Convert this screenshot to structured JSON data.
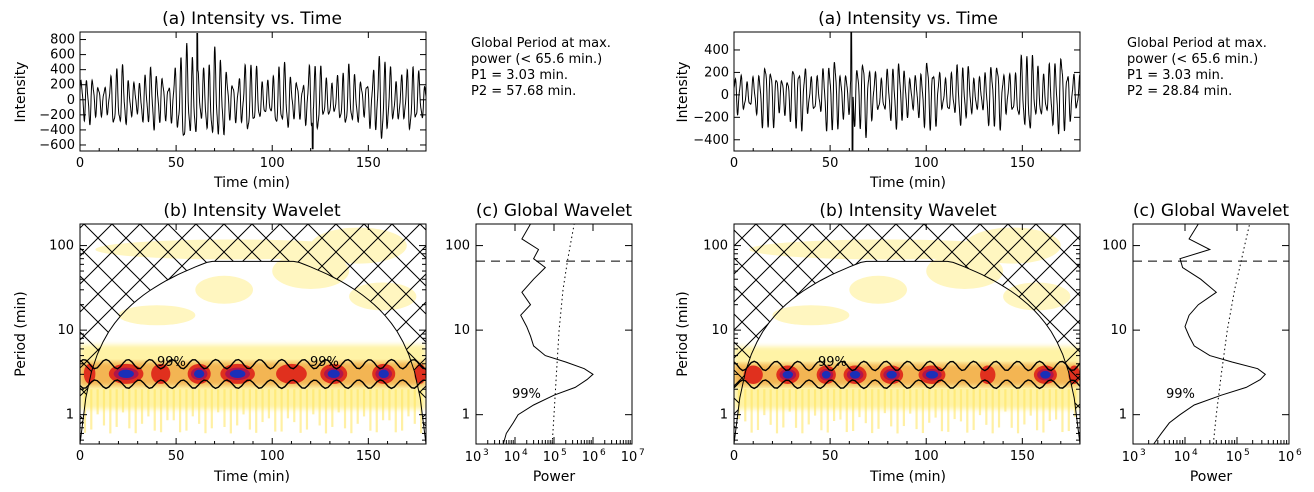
{
  "chart_data": [
    {
      "type": "line",
      "title": "(a) Intensity vs. Time",
      "xlabel": "Time (min)",
      "ylabel": "Intensity",
      "xlim": [
        0,
        180
      ],
      "ylim": [
        -680,
        900
      ],
      "xticks": [
        "0",
        "50",
        "100",
        "150"
      ],
      "yticks": [
        "800",
        "600",
        "400",
        "200",
        "0",
        "−200",
        "−400",
        "−600"
      ],
      "yticks_values": [
        800,
        600,
        400,
        200,
        0,
        -200,
        -400,
        -600
      ],
      "series": [
        {
          "type": "oscillation",
          "x": [
            0,
            180
          ],
          "dominant_period_min": 3.03,
          "amplitude_envelope": [
            {
              "t": 0,
              "amp": 300
            },
            {
              "t": 20,
              "amp": 450
            },
            {
              "t": 40,
              "amp": 420
            },
            {
              "t": 60,
              "amp": 780
            },
            {
              "t": 80,
              "amp": 520
            },
            {
              "t": 100,
              "amp": 450
            },
            {
              "t": 120,
              "amp": 500
            },
            {
              "t": 140,
              "amp": 420
            },
            {
              "t": 160,
              "amp": 620
            },
            {
              "t": 180,
              "amp": 350
            }
          ],
          "spikes": [
            {
              "t": 61,
              "y": 880
            },
            {
              "t": 121,
              "y": -650
            }
          ]
        }
      ],
      "annotation": [
        "Global Period at max.",
        "power (< 65.6 min.)",
        "P1 = 3.03 min.",
        "P2 = 57.68 min."
      ]
    },
    {
      "type": "heatmap",
      "title": "(b) Intensity Wavelet",
      "xlabel": "Time (min)",
      "ylabel": "Period (min)",
      "xlim": [
        0,
        180
      ],
      "ylim_log": [
        0.45,
        180
      ],
      "xticks": [
        "0",
        "50",
        "100",
        "150"
      ],
      "yticks": [
        "1",
        "10",
        "100"
      ],
      "yticks_values": [
        1,
        10,
        100
      ],
      "power_band_period_min": [
        2.2,
        4.2
      ],
      "blobs": [
        {
          "t": 5,
          "w": 3,
          "level": 2
        },
        {
          "t": 24,
          "w": 9,
          "level": 3
        },
        {
          "t": 42,
          "w": 5,
          "level": 2
        },
        {
          "t": 62,
          "w": 6,
          "level": 3
        },
        {
          "t": 82,
          "w": 9,
          "level": 3
        },
        {
          "t": 110,
          "w": 8,
          "level": 2
        },
        {
          "t": 132,
          "w": 7,
          "level": 3
        },
        {
          "t": 158,
          "w": 6,
          "level": 3
        },
        {
          "t": 177,
          "w": 3,
          "level": 2
        }
      ],
      "contour_labels": [
        {
          "text": "99%",
          "t": 43,
          "p": 4.5
        },
        {
          "text": "99%",
          "t": 128,
          "p": 4.5
        }
      ],
      "coi_peak_period": 65
    },
    {
      "type": "line",
      "title": "(c) Global Wavelet",
      "xlabel": "Power",
      "xscale": "log",
      "xlim_log": [
        1000,
        10000000
      ],
      "xticks": [
        "10",
        "10",
        "10",
        "10",
        "10"
      ],
      "xticks_exp": [
        "3",
        "4",
        "5",
        "6",
        "7"
      ],
      "ylim_log": [
        0.45,
        180
      ],
      "yticks": [
        "1",
        "10",
        "100"
      ],
      "series": [
        {
          "name": "global",
          "period": [
            0.45,
            0.6,
            0.8,
            1.0,
            1.3,
            1.7,
            2.1,
            2.6,
            3.0,
            3.5,
            4.2,
            5.0,
            6.5,
            8.5,
            11,
            15,
            20,
            28,
            40,
            55,
            70,
            90,
            120,
            180
          ],
          "power": [
            5000,
            6000,
            9000,
            12000,
            30000,
            100000,
            350000,
            700000,
            1000000,
            600000,
            200000,
            60000,
            30000,
            25000,
            20000,
            14000,
            25000,
            15000,
            30000,
            60000,
            30000,
            40000,
            15000,
            25000
          ]
        },
        {
          "name": "",
          "period": [
            0.45,
            1,
            3,
            10,
            30,
            65,
            100,
            180
          ],
          "power": [
            90000,
            100000,
            115000,
            135000,
            170000,
            220000,
            260000,
            330000
          ]
        }
      ],
      "dashed_period": 65.6,
      "label": "99%"
    },
    {
      "type": "line",
      "title": "(a) Intensity vs. Time",
      "xlabel": "Time (min)",
      "ylabel": "Intensity",
      "xlim": [
        0,
        180
      ],
      "ylim": [
        -500,
        560
      ],
      "xticks": [
        "0",
        "50",
        "100",
        "150"
      ],
      "yticks": [
        "400",
        "200",
        "0",
        "−200",
        "−400"
      ],
      "yticks_values": [
        400,
        200,
        0,
        -200,
        -400
      ],
      "series": [
        {
          "type": "oscillation",
          "x": [
            0,
            180
          ],
          "dominant_period_min": 3.03,
          "amplitude_envelope": [
            {
              "t": 0,
              "amp": 200
            },
            {
              "t": 20,
              "amp": 330
            },
            {
              "t": 40,
              "amp": 300
            },
            {
              "t": 60,
              "amp": 380
            },
            {
              "t": 80,
              "amp": 300
            },
            {
              "t": 100,
              "amp": 330
            },
            {
              "t": 120,
              "amp": 280
            },
            {
              "t": 140,
              "amp": 330
            },
            {
              "t": 160,
              "amp": 400
            },
            {
              "t": 180,
              "amp": 330
            }
          ],
          "spikes": [
            {
              "t": 61,
              "y": 555
            },
            {
              "t": 61.6,
              "y": -490
            }
          ]
        }
      ],
      "annotation": [
        "Global Period at max.",
        "power (< 65.6 min.)",
        "P1 = 3.03 min.",
        "P2 = 28.84 min."
      ]
    },
    {
      "type": "heatmap",
      "title": "(b) Intensity Wavelet",
      "xlabel": "Time (min)",
      "ylabel": "Period (min)",
      "xlim": [
        0,
        180
      ],
      "ylim_log": [
        0.45,
        180
      ],
      "xticks": [
        "0",
        "50",
        "100",
        "150"
      ],
      "yticks": [
        "1",
        "10",
        "100"
      ],
      "yticks_values": [
        1,
        10,
        100
      ],
      "power_band_period_min": [
        2.2,
        4.0
      ],
      "blobs": [
        {
          "t": 10,
          "w": 5,
          "level": 2
        },
        {
          "t": 28,
          "w": 6,
          "level": 3
        },
        {
          "t": 48,
          "w": 5,
          "level": 3
        },
        {
          "t": 63,
          "w": 6,
          "level": 3
        },
        {
          "t": 82,
          "w": 6,
          "level": 3
        },
        {
          "t": 103,
          "w": 7,
          "level": 3
        },
        {
          "t": 132,
          "w": 4,
          "level": 2
        },
        {
          "t": 162,
          "w": 6,
          "level": 3
        },
        {
          "t": 177,
          "w": 3,
          "level": 2
        }
      ],
      "contour_labels": [
        {
          "text": "99%",
          "t": 50,
          "p": 4.5
        }
      ],
      "coi_peak_period": 65
    },
    {
      "type": "line",
      "title": "(c) Global Wavelet",
      "xlabel": "Power",
      "xscale": "log",
      "xlim_log": [
        1000,
        1000000
      ],
      "xticks": [
        "10",
        "10",
        "10",
        "10"
      ],
      "xticks_exp": [
        "3",
        "4",
        "5",
        "6"
      ],
      "ylim_log": [
        0.45,
        180
      ],
      "yticks": [
        "1",
        "10",
        "100"
      ],
      "series": [
        {
          "name": "global",
          "period": [
            0.45,
            0.6,
            0.8,
            1.0,
            1.3,
            1.7,
            2.1,
            2.6,
            3.0,
            3.5,
            4.2,
            5.0,
            6.5,
            8.5,
            11,
            15,
            20,
            28,
            40,
            55,
            70,
            90,
            120,
            180
          ],
          "power": [
            2500,
            3500,
            5000,
            8000,
            15000,
            50000,
            150000,
            280000,
            350000,
            250000,
            80000,
            30000,
            15000,
            12000,
            10000,
            12000,
            18000,
            40000,
            20000,
            9000,
            8000,
            30000,
            12000,
            18000
          ]
        },
        {
          "name": "",
          "period": [
            0.45,
            1,
            3,
            10,
            30,
            65,
            100,
            180
          ],
          "power": [
            35000,
            40000,
            50000,
            65000,
            90000,
            120000,
            140000,
            175000
          ]
        }
      ],
      "dashed_period": 65.6,
      "label": "99%"
    }
  ]
}
